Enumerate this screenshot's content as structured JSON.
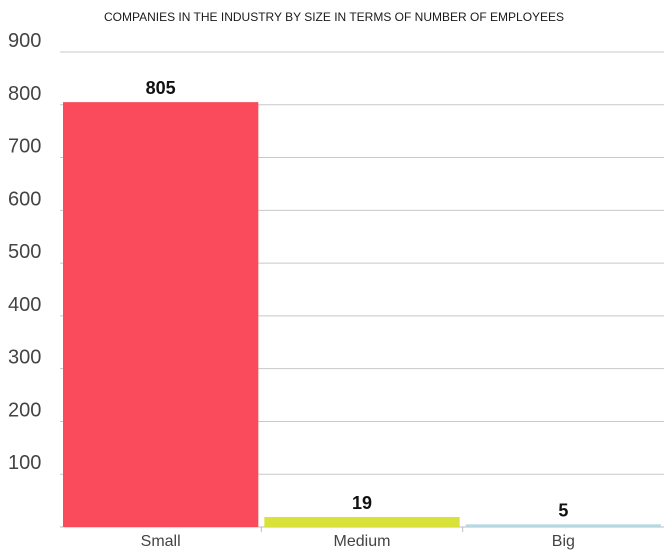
{
  "chart_data": {
    "type": "bar",
    "title": "COMPANIES IN THE INDUSTRY BY SIZE IN TERMS OF NUMBER OF EMPLOYEES",
    "xlabel": "",
    "ylabel": "",
    "categories": [
      "Small",
      "Medium",
      "Big"
    ],
    "values": [
      805,
      19,
      5
    ],
    "data_labels": [
      "805",
      "19",
      "5"
    ],
    "colors": [
      "#f94b5c",
      "#d8e23a",
      "#b7d7e3"
    ],
    "ylim": [
      0,
      900
    ],
    "yticks": [
      100,
      200,
      300,
      400,
      500,
      600,
      700,
      800,
      900
    ],
    "ytick_labels": [
      "100",
      "200",
      "300",
      "400",
      "500",
      "600",
      "700",
      "800",
      "900"
    ],
    "grid": true,
    "legend": "none"
  }
}
